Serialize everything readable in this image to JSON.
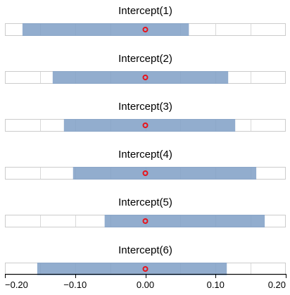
{
  "colors": {
    "interval_fill": "#7f9fc6",
    "marker": "#e8141c",
    "grid": "#d9d9d9",
    "panel_border": "#cccccc",
    "axis": "#000000",
    "background": "#ffffff"
  },
  "chart_data": {
    "type": "interval",
    "xlim": [
      -0.2,
      0.2
    ],
    "x_ticks": [
      -0.2,
      -0.1,
      0.0,
      0.1,
      0.2
    ],
    "x_tick_labels": [
      "−0.20",
      "−0.10",
      "0.00",
      "0.10",
      "0.20"
    ],
    "grid": true,
    "panels": [
      {
        "title": "Intercept(1)",
        "lower": -0.175,
        "upper": 0.062,
        "point": 0.0
      },
      {
        "title": "Intercept(2)",
        "lower": -0.132,
        "upper": 0.118,
        "point": 0.0
      },
      {
        "title": "Intercept(3)",
        "lower": -0.116,
        "upper": 0.128,
        "point": 0.0
      },
      {
        "title": "Intercept(4)",
        "lower": -0.103,
        "upper": 0.158,
        "point": 0.0
      },
      {
        "title": "Intercept(5)",
        "lower": -0.058,
        "upper": 0.17,
        "point": 0.0
      },
      {
        "title": "Intercept(6)",
        "lower": -0.154,
        "upper": 0.116,
        "point": 0.0
      }
    ]
  }
}
